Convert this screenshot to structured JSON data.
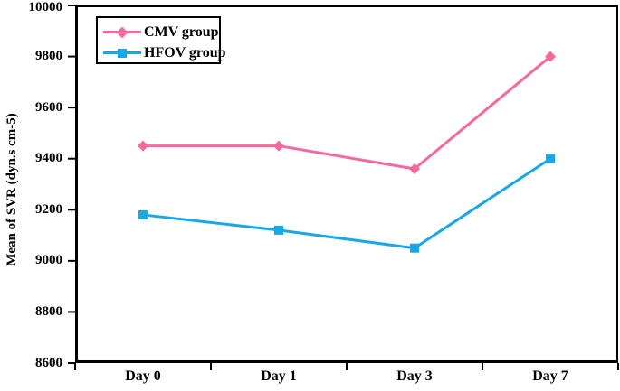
{
  "chart_data": {
    "type": "line",
    "title": "",
    "categories": [
      "Day 0",
      "Day 1",
      "Day 3",
      "Day 7"
    ],
    "series": [
      {
        "name": "CMV group",
        "values": [
          9450,
          9450,
          9360,
          9800
        ],
        "color": "#f8679e",
        "marker": "diamond"
      },
      {
        "name": "HFOV group",
        "values": [
          9180,
          9120,
          9050,
          9400
        ],
        "color": "#17a8ea",
        "marker": "square"
      }
    ],
    "xlabel": "",
    "ylabel": "Mean of SVR (dyn.s cm-5)",
    "ylim": [
      8600,
      10000
    ],
    "yticks": [
      10000,
      9800,
      9600,
      9400,
      9200,
      9000,
      8800,
      8600
    ],
    "grid": false,
    "legend_position": "top-left",
    "axis_color": "#000000",
    "background": "#ffffff"
  }
}
